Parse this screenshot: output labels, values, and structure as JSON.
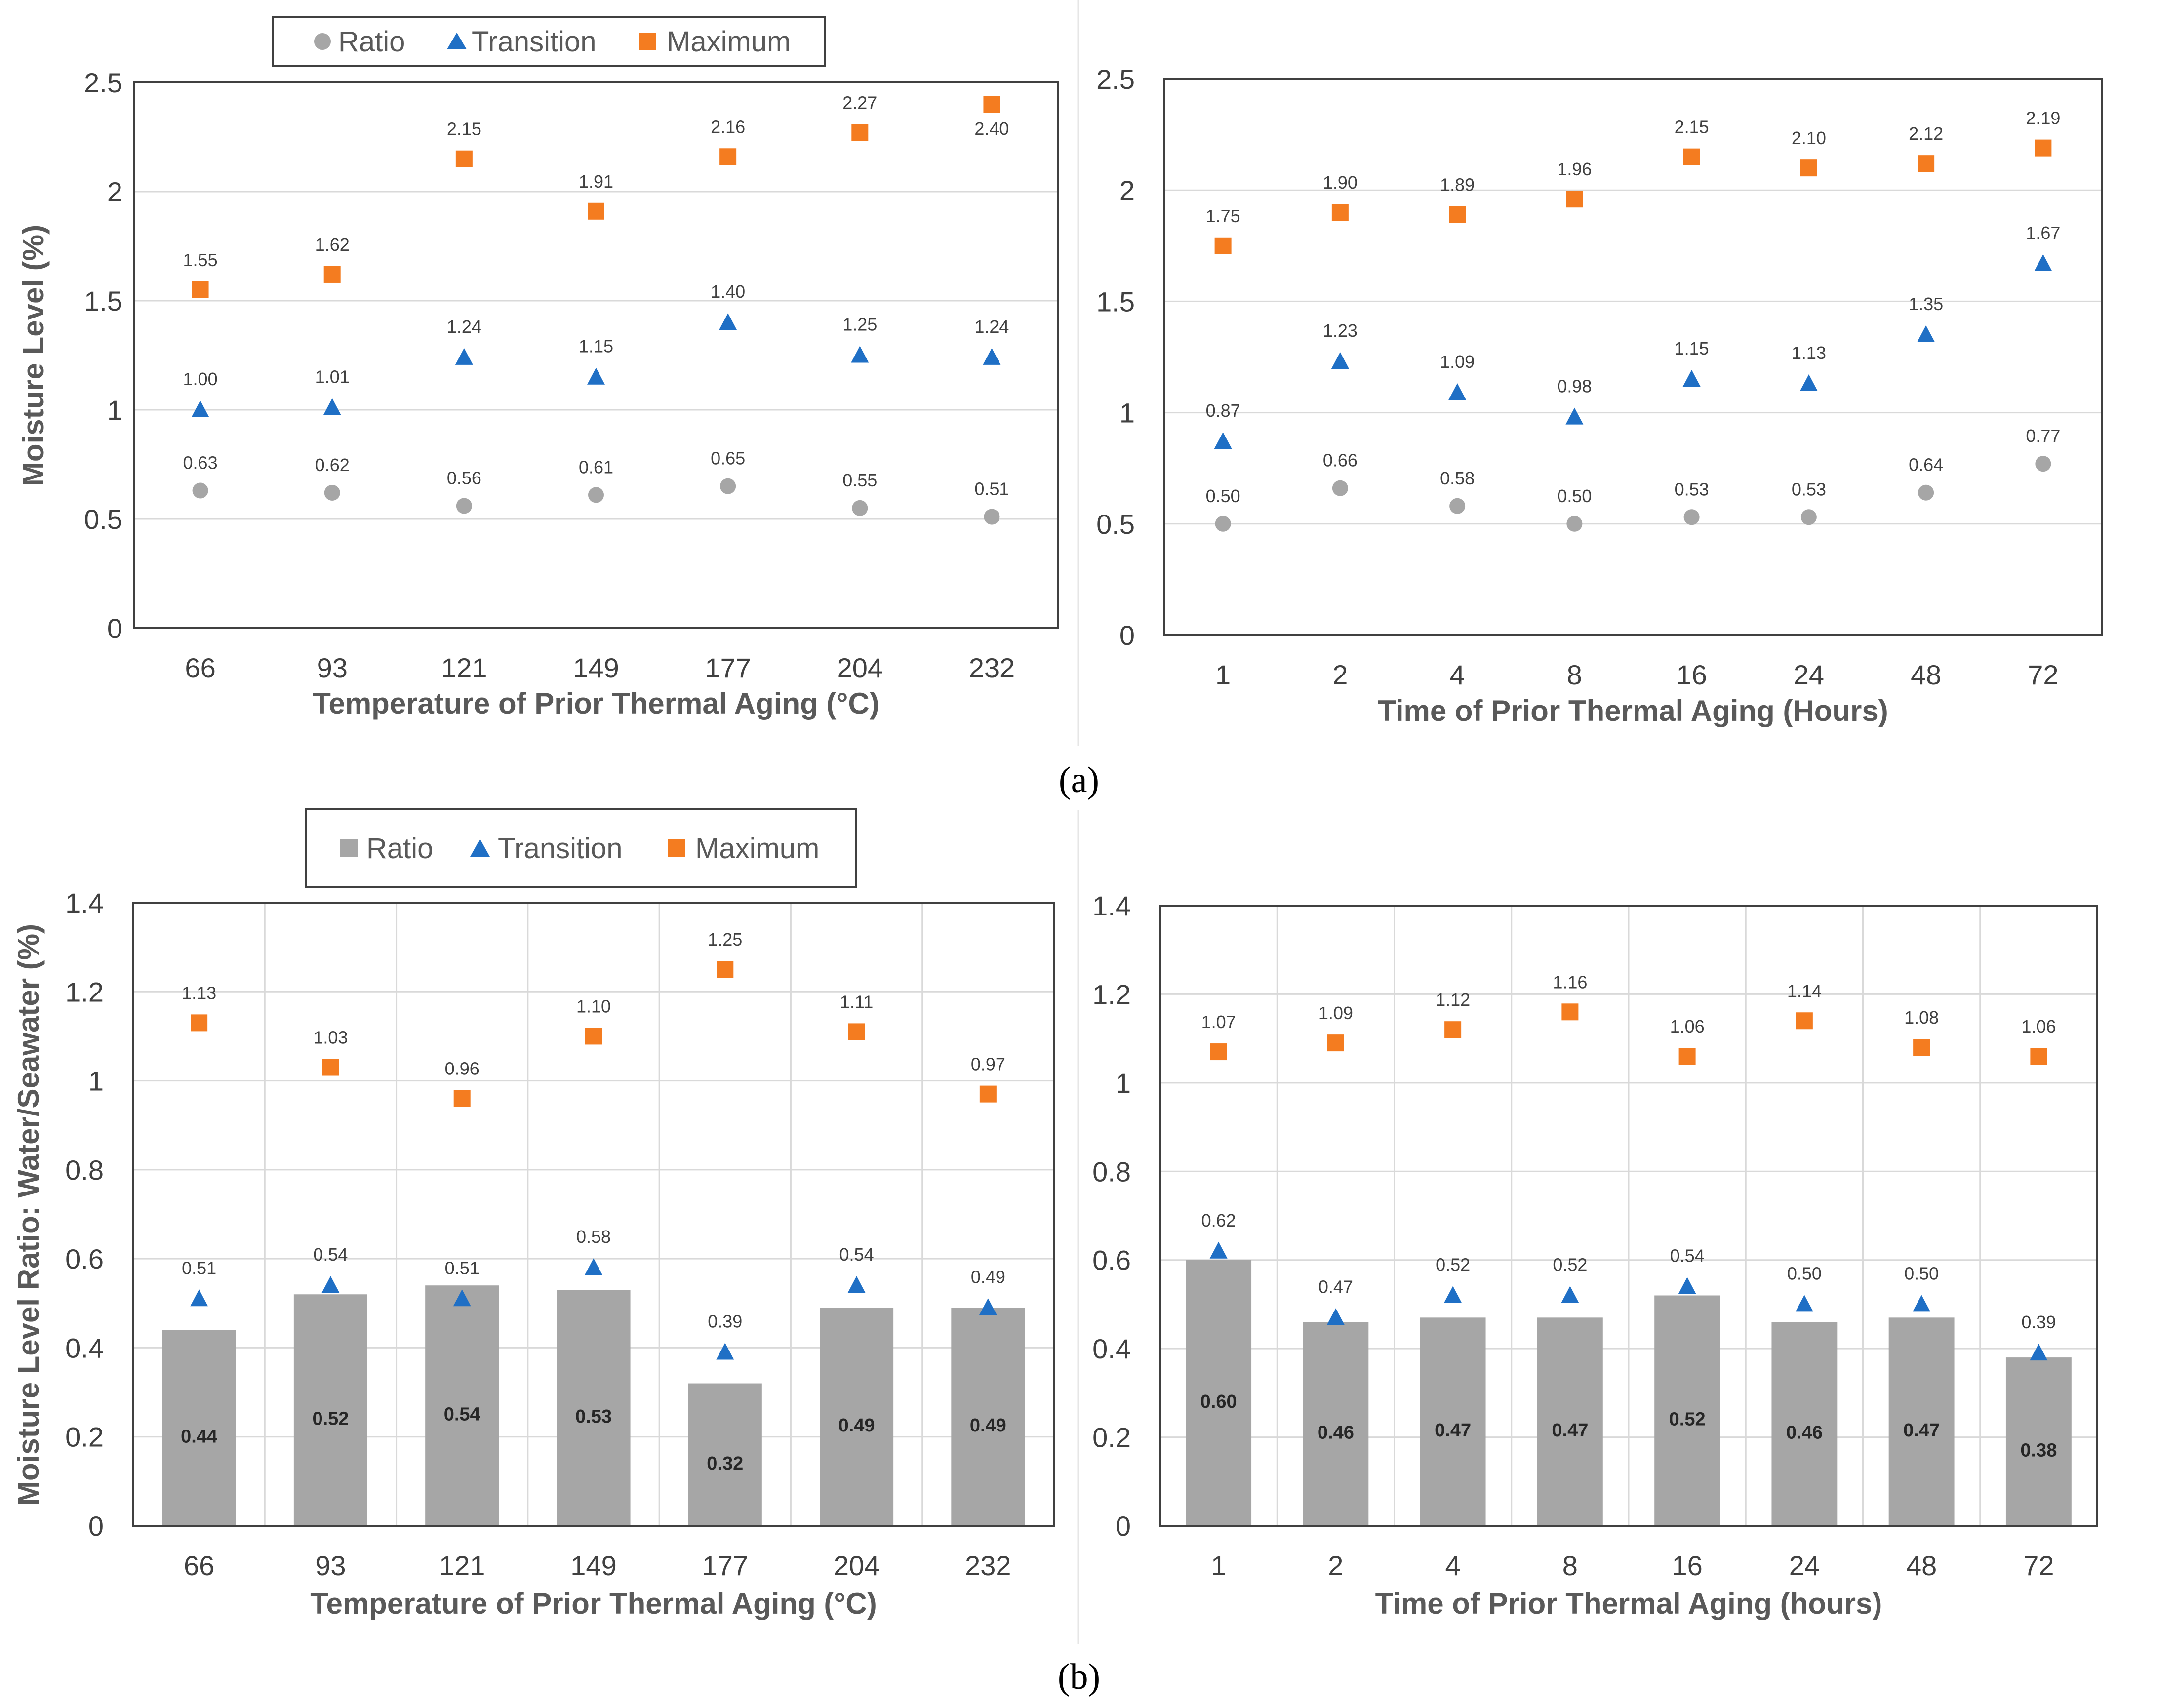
{
  "legend_labels": {
    "ratio": "Ratio",
    "transition": "Transition",
    "maximum": "Maximum"
  },
  "colors": {
    "ratio": "#a6a6a6",
    "ratio_bar": "#a6a6a6",
    "transition": "#1f6fc5",
    "maximum": "#f47c20",
    "grid": "#d9d9d9",
    "frame": "#404040"
  },
  "captions": {
    "a": "(a)",
    "b": "(b)"
  },
  "chart_data": [
    {
      "id": "a-left",
      "type": "scatter",
      "title": "",
      "xlabel": "Temperature of Prior Thermal Aging (°C)",
      "ylabel": "Moisture Level (%)",
      "categories": [
        "66",
        "93",
        "121",
        "149",
        "177",
        "204",
        "232"
      ],
      "ylim": [
        0,
        2.5
      ],
      "yticks": [
        "0",
        "0.5",
        "1",
        "1.5",
        "2",
        "2.5"
      ],
      "ytick_values": [
        0,
        0.5,
        1,
        1.5,
        2,
        2.5
      ],
      "series": [
        {
          "name": "Ratio",
          "marker": "circle",
          "values": [
            0.63,
            0.62,
            0.56,
            0.61,
            0.65,
            0.55,
            0.51
          ],
          "labels": [
            "0.63",
            "0.62",
            "0.56",
            "0.61",
            "0.65",
            "0.55",
            "0.51"
          ]
        },
        {
          "name": "Transition",
          "marker": "triangle",
          "values": [
            1.0,
            1.01,
            1.24,
            1.15,
            1.4,
            1.25,
            1.24
          ],
          "labels": [
            "1.00",
            "1.01",
            "1.24",
            "1.15",
            "1.40",
            "1.25",
            "1.24"
          ]
        },
        {
          "name": "Maximum",
          "marker": "square",
          "values": [
            1.55,
            1.62,
            2.15,
            1.91,
            2.16,
            2.27,
            2.4
          ],
          "labels": [
            "1.55",
            "1.62",
            "2.15",
            "1.91",
            "2.16",
            "2.27",
            "2.40"
          ]
        }
      ]
    },
    {
      "id": "a-right",
      "type": "scatter",
      "title": "",
      "xlabel": "Time of Prior Thermal Aging (Hours)",
      "ylabel": "",
      "categories": [
        "1",
        "2",
        "4",
        "8",
        "16",
        "24",
        "48",
        "72"
      ],
      "ylim": [
        0,
        2.5
      ],
      "yticks": [
        "0",
        "0.5",
        "1",
        "1.5",
        "2",
        "2.5"
      ],
      "ytick_values": [
        0,
        0.5,
        1,
        1.5,
        2,
        2.5
      ],
      "series": [
        {
          "name": "Ratio",
          "marker": "circle",
          "values": [
            0.5,
            0.66,
            0.58,
            0.5,
            0.53,
            0.53,
            0.64,
            0.77
          ],
          "labels": [
            "0.50",
            "0.66",
            "0.58",
            "0.50",
            "0.53",
            "0.53",
            "0.64",
            "0.77"
          ]
        },
        {
          "name": "Transition",
          "marker": "triangle",
          "values": [
            0.87,
            1.23,
            1.09,
            0.98,
            1.15,
            1.13,
            1.35,
            1.67
          ],
          "labels": [
            "0.87",
            "1.23",
            "1.09",
            "0.98",
            "1.15",
            "1.13",
            "1.35",
            "1.67"
          ]
        },
        {
          "name": "Maximum",
          "marker": "square",
          "values": [
            1.75,
            1.9,
            1.89,
            1.96,
            2.15,
            2.1,
            2.12,
            2.19
          ],
          "labels": [
            "1.75",
            "1.90",
            "1.89",
            "1.96",
            "2.15",
            "2.10",
            "2.12",
            "2.19"
          ]
        }
      ]
    },
    {
      "id": "b-left",
      "type": "bar",
      "title": "",
      "xlabel": "Temperature of Prior Thermal Aging (°C)",
      "ylabel": "Moisture Level Ratio: Water/Seawater (%)",
      "categories": [
        "66",
        "93",
        "121",
        "149",
        "177",
        "204",
        "232"
      ],
      "ylim": [
        0,
        1.4
      ],
      "yticks": [
        "0",
        "0.2",
        "0.4",
        "0.6",
        "0.8",
        "1",
        "1.2",
        "1.4"
      ],
      "ytick_values": [
        0,
        0.2,
        0.4,
        0.6,
        0.8,
        1,
        1.2,
        1.4
      ],
      "series": [
        {
          "name": "Ratio",
          "marker": "bar",
          "values": [
            0.44,
            0.52,
            0.54,
            0.53,
            0.32,
            0.49,
            0.49
          ],
          "labels": [
            "0.44",
            "0.52",
            "0.54",
            "0.53",
            "0.32",
            "0.49",
            "0.49"
          ]
        },
        {
          "name": "Transition",
          "marker": "triangle",
          "values": [
            0.51,
            0.54,
            0.51,
            0.58,
            0.39,
            0.54,
            0.49
          ],
          "labels": [
            "0.51",
            "0.54",
            "0.51",
            "0.58",
            "0.39",
            "0.54",
            "0.49"
          ]
        },
        {
          "name": "Maximum",
          "marker": "square",
          "values": [
            1.13,
            1.03,
            0.96,
            1.1,
            1.25,
            1.11,
            0.97
          ],
          "labels": [
            "1.13",
            "1.03",
            "0.96",
            "1.10",
            "1.25",
            "1.11",
            "0.97"
          ]
        }
      ]
    },
    {
      "id": "b-right",
      "type": "bar",
      "title": "",
      "xlabel": "Time of Prior Thermal Aging (hours)",
      "ylabel": "",
      "categories": [
        "1",
        "2",
        "4",
        "8",
        "16",
        "24",
        "48",
        "72"
      ],
      "ylim": [
        0,
        1.4
      ],
      "yticks": [
        "0",
        "0.2",
        "0.4",
        "0.6",
        "0.8",
        "1",
        "1.2",
        "1.4"
      ],
      "ytick_values": [
        0,
        0.2,
        0.4,
        0.6,
        0.8,
        1,
        1.2,
        1.4
      ],
      "series": [
        {
          "name": "Ratio",
          "marker": "bar",
          "values": [
            0.6,
            0.46,
            0.47,
            0.47,
            0.52,
            0.46,
            0.47,
            0.38
          ],
          "labels": [
            "0.60",
            "0.46",
            "0.47",
            "0.47",
            "0.52",
            "0.46",
            "0.47",
            "0.38"
          ]
        },
        {
          "name": "Transition",
          "marker": "triangle",
          "values": [
            0.62,
            0.47,
            0.52,
            0.52,
            0.54,
            0.5,
            0.5,
            0.39
          ],
          "labels": [
            "0.62",
            "0.47",
            "0.52",
            "0.52",
            "0.54",
            "0.50",
            "0.50",
            "0.39"
          ]
        },
        {
          "name": "Maximum",
          "marker": "square",
          "values": [
            1.07,
            1.09,
            1.12,
            1.16,
            1.06,
            1.14,
            1.08,
            1.06
          ],
          "labels": [
            "1.07",
            "1.09",
            "1.12",
            "1.16",
            "1.06",
            "1.14",
            "1.08",
            "1.06"
          ]
        }
      ]
    }
  ]
}
